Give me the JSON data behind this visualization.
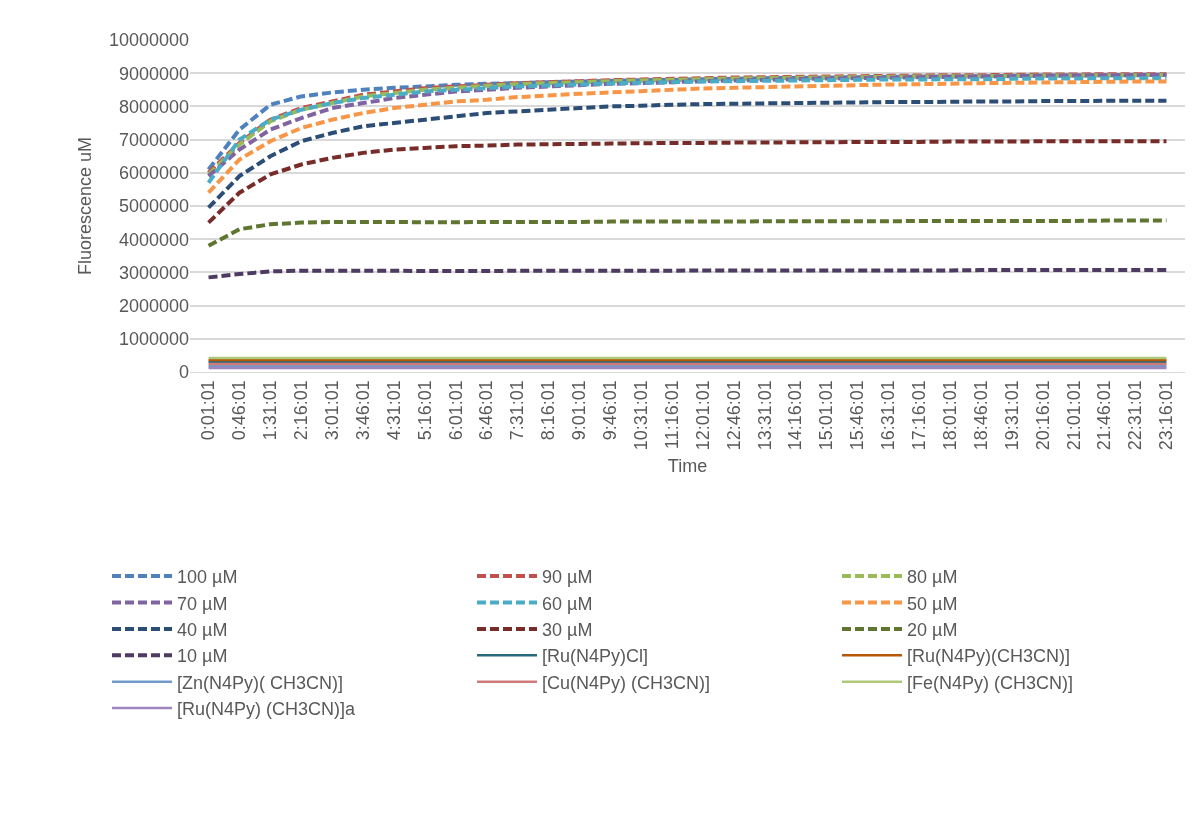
{
  "chart_data": {
    "type": "line",
    "xlabel": "Time",
    "ylabel": "Fluorescence uM",
    "grid": "y",
    "legend": "bottom",
    "marker": "none",
    "categories": [
      "0:01:01",
      "0:46:01",
      "1:31:01",
      "2:16:01",
      "3:01:01",
      "3:46:01",
      "4:31:01",
      "5:16:01",
      "6:01:01",
      "6:46:01",
      "7:31:01",
      "8:16:01",
      "9:01:01",
      "9:46:01",
      "10:31:01",
      "11:16:01",
      "12:01:01",
      "12:46:01",
      "13:31:01",
      "14:16:01",
      "15:01:01",
      "15:46:01",
      "16:31:01",
      "17:16:01",
      "18:01:01",
      "18:46:01",
      "19:31:01",
      "20:16:01",
      "21:01:01",
      "21:46:01",
      "22:31:01",
      "23:16:01"
    ],
    "ylim": [
      0,
      10000000
    ],
    "yticks": [
      0,
      1000000,
      2000000,
      3000000,
      4000000,
      5000000,
      6000000,
      7000000,
      8000000,
      9000000,
      10000000
    ],
    "series": [
      {
        "name": "100 µM",
        "color": "#4f81bd",
        "line_style": "dashed",
        "values": [
          6100000,
          7300000,
          8050000,
          8300000,
          8420000,
          8500000,
          8560000,
          8600000,
          8650000,
          8680000,
          8700000,
          8730000,
          8750000,
          8770000,
          8790000,
          8800000,
          8820000,
          8830000,
          8850000,
          8860000,
          8870000,
          8880000,
          8890000,
          8900000,
          8900000,
          8910000,
          8920000,
          8930000,
          8930000,
          8940000,
          8950000,
          8950000
        ]
      },
      {
        "name": "90 µM",
        "color": "#c0504d",
        "line_style": "dashed",
        "values": [
          6000000,
          6900000,
          7600000,
          7950000,
          8150000,
          8350000,
          8450000,
          8550000,
          8600000,
          8650000,
          8700000,
          8730000,
          8760000,
          8790000,
          8810000,
          8830000,
          8850000,
          8870000,
          8880000,
          8890000,
          8900000,
          8910000,
          8920000,
          8930000,
          8940000,
          8940000,
          8950000,
          8960000,
          8960000,
          8970000,
          8970000,
          8970000
        ]
      },
      {
        "name": "80 µM",
        "color": "#9bbb59",
        "line_style": "dashed",
        "values": [
          5950000,
          6850000,
          7550000,
          7900000,
          8100000,
          8300000,
          8400000,
          8500000,
          8560000,
          8620000,
          8670000,
          8700000,
          8730000,
          8760000,
          8780000,
          8800000,
          8820000,
          8840000,
          8850000,
          8860000,
          8870000,
          8880000,
          8890000,
          8900000,
          8910000,
          8910000,
          8920000,
          8930000,
          8930000,
          8940000,
          8940000,
          8950000
        ]
      },
      {
        "name": "70 µM",
        "color": "#8064a2",
        "line_style": "dashed",
        "values": [
          5900000,
          6700000,
          7300000,
          7650000,
          7950000,
          8100000,
          8250000,
          8350000,
          8450000,
          8500000,
          8560000,
          8600000,
          8640000,
          8680000,
          8700000,
          8730000,
          8760000,
          8780000,
          8800000,
          8820000,
          8840000,
          8850000,
          8860000,
          8880000,
          8890000,
          8900000,
          8910000,
          8920000,
          8930000,
          8940000,
          8940000,
          8950000
        ]
      },
      {
        "name": "60 µM",
        "color": "#4bacc6",
        "line_style": "dashed",
        "values": [
          5700000,
          7000000,
          7600000,
          7900000,
          8100000,
          8250000,
          8350000,
          8450000,
          8500000,
          8550000,
          8600000,
          8630000,
          8660000,
          8690000,
          8710000,
          8730000,
          8750000,
          8760000,
          8770000,
          8780000,
          8790000,
          8800000,
          8810000,
          8810000,
          8820000,
          8820000,
          8830000,
          8840000,
          8840000,
          8850000,
          8850000,
          8850000
        ]
      },
      {
        "name": "50 µM",
        "color": "#f79646",
        "line_style": "dashed",
        "values": [
          5400000,
          6400000,
          6950000,
          7350000,
          7600000,
          7800000,
          7950000,
          8050000,
          8150000,
          8200000,
          8280000,
          8330000,
          8380000,
          8420000,
          8460000,
          8500000,
          8540000,
          8560000,
          8580000,
          8600000,
          8620000,
          8640000,
          8660000,
          8670000,
          8680000,
          8700000,
          8710000,
          8720000,
          8730000,
          8740000,
          8750000,
          8750000
        ]
      },
      {
        "name": "40 µM",
        "color": "#2c4d75",
        "line_style": "dashed",
        "values": [
          4950000,
          5900000,
          6500000,
          6950000,
          7200000,
          7400000,
          7500000,
          7600000,
          7700000,
          7800000,
          7850000,
          7900000,
          7950000,
          8000000,
          8020000,
          8050000,
          8070000,
          8080000,
          8090000,
          8100000,
          8110000,
          8120000,
          8130000,
          8130000,
          8140000,
          8150000,
          8150000,
          8160000,
          8160000,
          8170000,
          8170000,
          8170000
        ]
      },
      {
        "name": "30 µM",
        "color": "#772c2a",
        "line_style": "dashed",
        "values": [
          4500000,
          5400000,
          5950000,
          6250000,
          6450000,
          6600000,
          6700000,
          6750000,
          6800000,
          6820000,
          6850000,
          6860000,
          6870000,
          6880000,
          6890000,
          6900000,
          6900000,
          6910000,
          6910000,
          6920000,
          6920000,
          6930000,
          6930000,
          6930000,
          6940000,
          6940000,
          6940000,
          6950000,
          6950000,
          6950000,
          6950000,
          6950000
        ]
      },
      {
        "name": "20 µM",
        "color": "#5f7530",
        "line_style": "dashed",
        "values": [
          3800000,
          4300000,
          4450000,
          4500000,
          4520000,
          4520000,
          4520000,
          4510000,
          4510000,
          4520000,
          4520000,
          4520000,
          4520000,
          4530000,
          4530000,
          4530000,
          4530000,
          4530000,
          4540000,
          4540000,
          4540000,
          4540000,
          4540000,
          4550000,
          4550000,
          4550000,
          4550000,
          4550000,
          4550000,
          4560000,
          4560000,
          4560000
        ]
      },
      {
        "name": "10 µM",
        "color": "#4d3b62",
        "line_style": "dashed",
        "values": [
          2850000,
          2950000,
          3030000,
          3050000,
          3050000,
          3050000,
          3050000,
          3040000,
          3040000,
          3040000,
          3050000,
          3050000,
          3050000,
          3050000,
          3050000,
          3050000,
          3060000,
          3060000,
          3060000,
          3060000,
          3060000,
          3060000,
          3060000,
          3060000,
          3060000,
          3070000,
          3070000,
          3070000,
          3070000,
          3070000,
          3070000,
          3070000
        ]
      },
      {
        "name": "[Ru(N4Py)Cl]",
        "color": "#276a7c",
        "line_style": "solid",
        "values": [
          300000,
          300000,
          300000,
          300000,
          300000,
          300000,
          300000,
          300000,
          300000,
          300000,
          300000,
          300000,
          300000,
          300000,
          300000,
          300000,
          300000,
          300000,
          300000,
          300000,
          300000,
          300000,
          300000,
          300000,
          300000,
          300000,
          300000,
          300000,
          300000,
          300000,
          300000,
          300000
        ]
      },
      {
        "name": "[Ru(N4Py)(CH3CN)]",
        "color": "#b65708",
        "line_style": "solid",
        "values": [
          360000,
          360000,
          360000,
          360000,
          360000,
          360000,
          360000,
          360000,
          360000,
          360000,
          360000,
          360000,
          360000,
          360000,
          360000,
          360000,
          360000,
          360000,
          360000,
          360000,
          360000,
          360000,
          360000,
          360000,
          360000,
          360000,
          360000,
          360000,
          360000,
          360000,
          360000,
          360000
        ]
      },
      {
        "name": "[Zn(N4Py)( CH3CN)]",
        "color": "#729aca",
        "line_style": "solid",
        "values": [
          180000,
          180000,
          180000,
          180000,
          180000,
          180000,
          180000,
          180000,
          180000,
          180000,
          180000,
          180000,
          180000,
          180000,
          180000,
          180000,
          180000,
          180000,
          180000,
          180000,
          180000,
          180000,
          180000,
          180000,
          180000,
          180000,
          180000,
          180000,
          180000,
          180000,
          180000,
          180000
        ]
      },
      {
        "name": "[Cu(N4Py) (CH3CN)]",
        "color": "#d07b79",
        "line_style": "solid",
        "values": [
          240000,
          240000,
          240000,
          240000,
          240000,
          240000,
          240000,
          240000,
          240000,
          240000,
          240000,
          240000,
          240000,
          240000,
          240000,
          240000,
          240000,
          240000,
          240000,
          240000,
          240000,
          240000,
          240000,
          240000,
          240000,
          240000,
          240000,
          240000,
          240000,
          240000,
          240000,
          240000
        ]
      },
      {
        "name": "[Fe(N4Py) (CH3CN)]",
        "color": "#afc97a",
        "line_style": "solid",
        "values": [
          420000,
          420000,
          420000,
          420000,
          420000,
          420000,
          420000,
          420000,
          420000,
          420000,
          420000,
          420000,
          420000,
          420000,
          420000,
          420000,
          420000,
          420000,
          420000,
          420000,
          420000,
          420000,
          420000,
          420000,
          420000,
          420000,
          420000,
          420000,
          420000,
          420000,
          420000,
          420000
        ]
      },
      {
        "name": "[Ru(N4Py) (CH3CN)]a",
        "color": "#9d85be",
        "line_style": "solid",
        "values": [
          120000,
          120000,
          120000,
          120000,
          120000,
          120000,
          120000,
          120000,
          120000,
          120000,
          120000,
          120000,
          120000,
          120000,
          120000,
          120000,
          120000,
          120000,
          120000,
          120000,
          120000,
          120000,
          120000,
          120000,
          120000,
          120000,
          120000,
          120000,
          120000,
          120000,
          120000,
          120000
        ]
      }
    ]
  }
}
